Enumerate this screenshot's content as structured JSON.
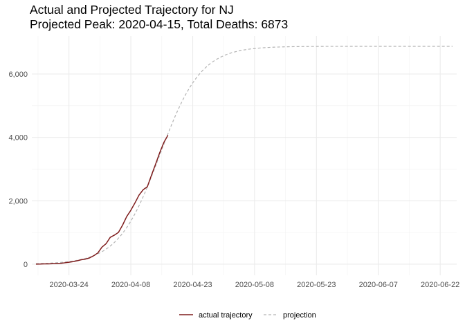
{
  "chart_data": {
    "type": "line",
    "title": "Actual and Projected Trajectory for NJ",
    "subtitle": "Projected Peak: 2020-04-15, Total Deaths: 6873",
    "xlabel": "",
    "ylabel": "",
    "x_axis_type": "date",
    "xlim": [
      "2020-03-15",
      "2020-06-26"
    ],
    "ylim": [
      -350,
      7200
    ],
    "x_ticks": [
      "2020-03-24",
      "2020-04-08",
      "2020-04-23",
      "2020-05-08",
      "2020-05-23",
      "2020-06-07",
      "2020-06-22"
    ],
    "y_ticks": [
      0,
      2000,
      4000,
      6000
    ],
    "y_tick_labels": [
      "0",
      "2,000",
      "4,000",
      "6,000"
    ],
    "grid": true,
    "legend_position": "bottom",
    "series": [
      {
        "name": "actual trajectory",
        "color": "#7f1d1d",
        "style": "solid",
        "points": [
          [
            "2020-03-16",
            3
          ],
          [
            "2020-03-17",
            5
          ],
          [
            "2020-03-18",
            9
          ],
          [
            "2020-03-19",
            11
          ],
          [
            "2020-03-20",
            16
          ],
          [
            "2020-03-21",
            20
          ],
          [
            "2020-03-22",
            27
          ],
          [
            "2020-03-23",
            44
          ],
          [
            "2020-03-24",
            62
          ],
          [
            "2020-03-25",
            81
          ],
          [
            "2020-03-26",
            108
          ],
          [
            "2020-03-27",
            140
          ],
          [
            "2020-03-28",
            161
          ],
          [
            "2020-03-29",
            198
          ],
          [
            "2020-03-30",
            267
          ],
          [
            "2020-03-31",
            355
          ],
          [
            "2020-04-01",
            537
          ],
          [
            "2020-04-02",
            646
          ],
          [
            "2020-04-03",
            846
          ],
          [
            "2020-04-04",
            917
          ],
          [
            "2020-04-05",
            1003
          ],
          [
            "2020-04-06",
            1232
          ],
          [
            "2020-04-07",
            1504
          ],
          [
            "2020-04-08",
            1700
          ],
          [
            "2020-04-09",
            1932
          ],
          [
            "2020-04-10",
            2183
          ],
          [
            "2020-04-11",
            2350
          ],
          [
            "2020-04-12",
            2443
          ],
          [
            "2020-04-13",
            2805
          ],
          [
            "2020-04-14",
            3156
          ],
          [
            "2020-04-15",
            3518
          ],
          [
            "2020-04-16",
            3840
          ],
          [
            "2020-04-17",
            4070
          ]
        ]
      },
      {
        "name": "projection",
        "color": "#b3b3b3",
        "style": "dashed",
        "model": {
          "kind": "logistic",
          "peak_date": "2020-04-15",
          "total": 6873,
          "rate": 0.2,
          "start": "2020-03-16",
          "end": "2020-06-25"
        }
      }
    ]
  }
}
